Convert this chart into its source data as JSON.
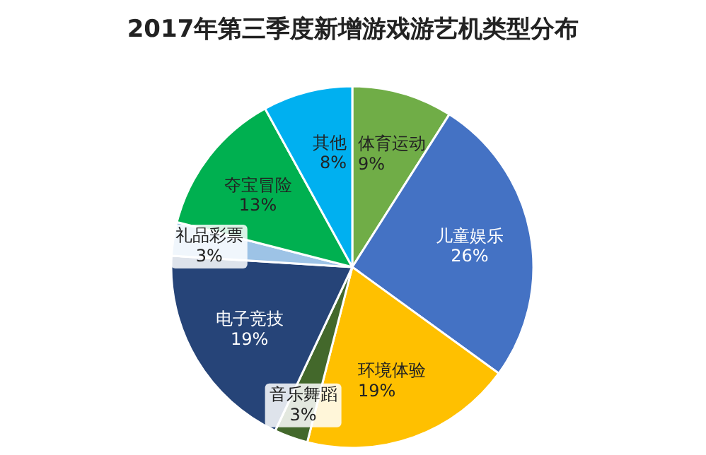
{
  "chart_data": {
    "type": "pie",
    "title": "2017年第三季度新增游戏游艺机类型分布",
    "categories": [
      "体育运动",
      "儿童娱乐",
      "环境体验",
      "音乐舞蹈",
      "电子竞技",
      "礼品彩票",
      "夺宝冒险",
      "其他"
    ],
    "values": [
      9,
      26,
      19,
      3,
      19,
      3,
      13,
      8
    ],
    "colors": [
      "#70ad47",
      "#4472c4",
      "#ffc000",
      "#43682b",
      "#264478",
      "#9dc3e6",
      "#00b050",
      "#00b0f0"
    ],
    "value_labels": [
      "9%",
      "26%",
      "19%",
      "3%",
      "19%",
      "3%",
      "13%",
      "8%"
    ]
  }
}
